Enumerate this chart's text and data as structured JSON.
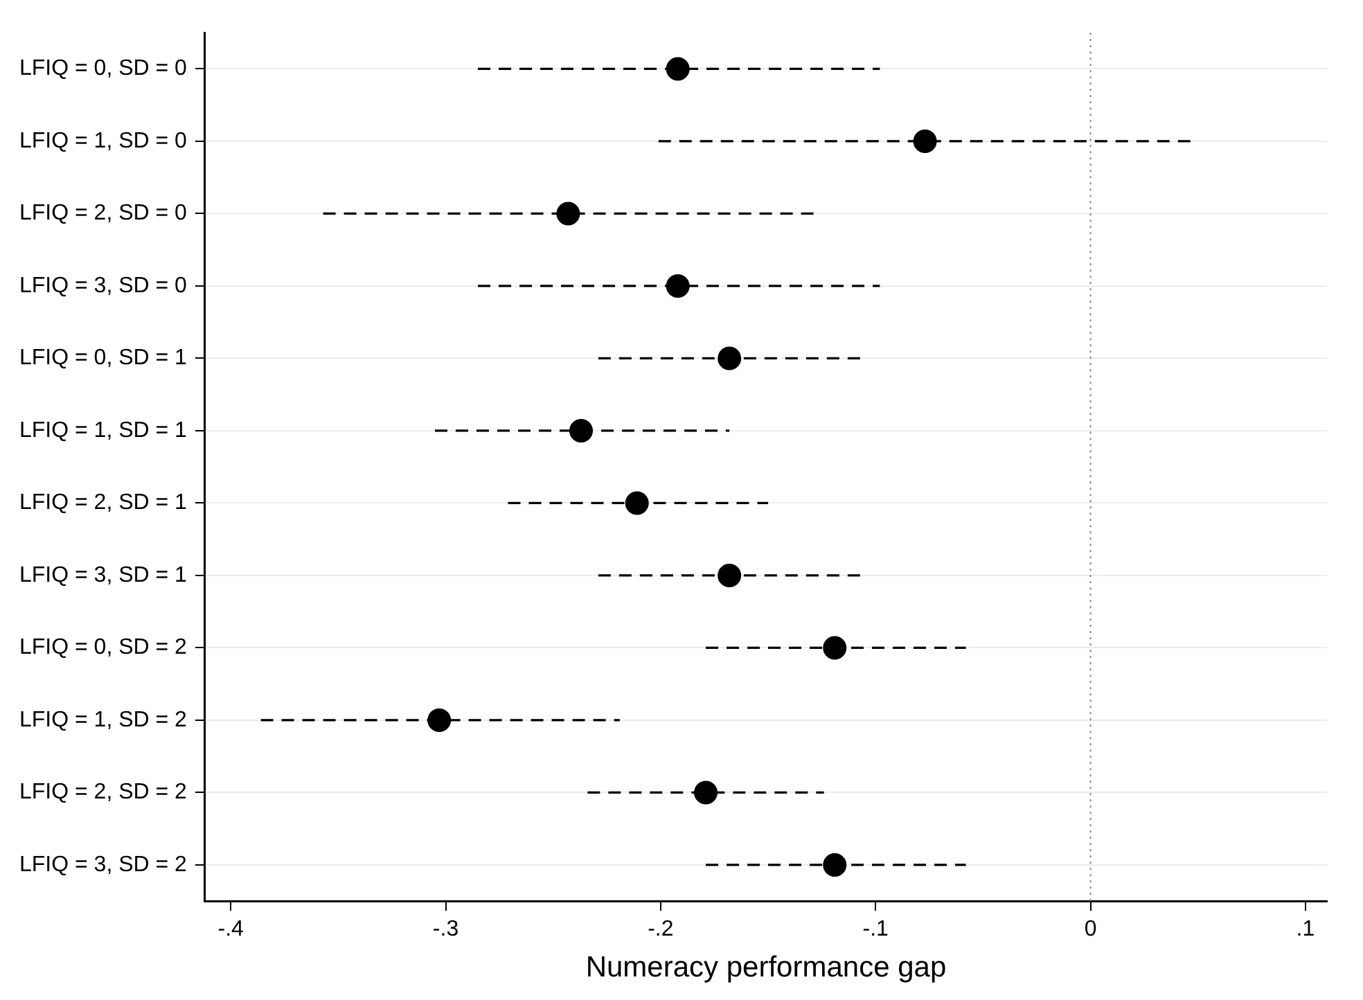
{
  "chart_data": {
    "type": "scatter",
    "orientation": "horizontal",
    "xlabel": "Numeracy performance gap",
    "categories": [
      "LFIQ = 0, SD = 0",
      "LFIQ = 1, SD = 0",
      "LFIQ = 2, SD = 0",
      "LFIQ = 3, SD = 0",
      "LFIQ = 0, SD = 1",
      "LFIQ = 1, SD = 1",
      "LFIQ = 2, SD = 1",
      "LFIQ = 3, SD = 1",
      "LFIQ = 0, SD = 2",
      "LFIQ = 1, SD = 2",
      "LFIQ = 2, SD = 2",
      "LFIQ = 3, SD = 2"
    ],
    "values": [
      -0.192,
      -0.077,
      -0.243,
      -0.192,
      -0.168,
      -0.237,
      -0.211,
      -0.168,
      -0.119,
      -0.303,
      -0.179,
      -0.119
    ],
    "errors": [
      [
        -0.285,
        -0.098
      ],
      [
        -0.201,
        0.05
      ],
      [
        -0.357,
        -0.128
      ],
      [
        -0.285,
        -0.098
      ],
      [
        -0.229,
        -0.107
      ],
      [
        -0.305,
        -0.168
      ],
      [
        -0.271,
        -0.15
      ],
      [
        -0.229,
        -0.107
      ],
      [
        -0.179,
        -0.058
      ],
      [
        -0.386,
        -0.219
      ],
      [
        -0.234,
        -0.124
      ],
      [
        -0.179,
        -0.058
      ]
    ],
    "color": "#000000",
    "marker": "circle",
    "line_style": "dashed",
    "xlim": [
      -0.412,
      0.11
    ],
    "xticks": [
      {
        "value": -0.4,
        "label": "-.4"
      },
      {
        "value": -0.3,
        "label": "-.3"
      },
      {
        "value": -0.2,
        "label": "-.2"
      },
      {
        "value": -0.1,
        "label": "-.1"
      },
      0,
      {
        "value": 0.1,
        "label": ".1"
      }
    ],
    "grid": "y",
    "ref_lines": [
      {
        "axis": "x",
        "value": 0,
        "color": "#808080",
        "line_style": "dotted"
      }
    ]
  }
}
